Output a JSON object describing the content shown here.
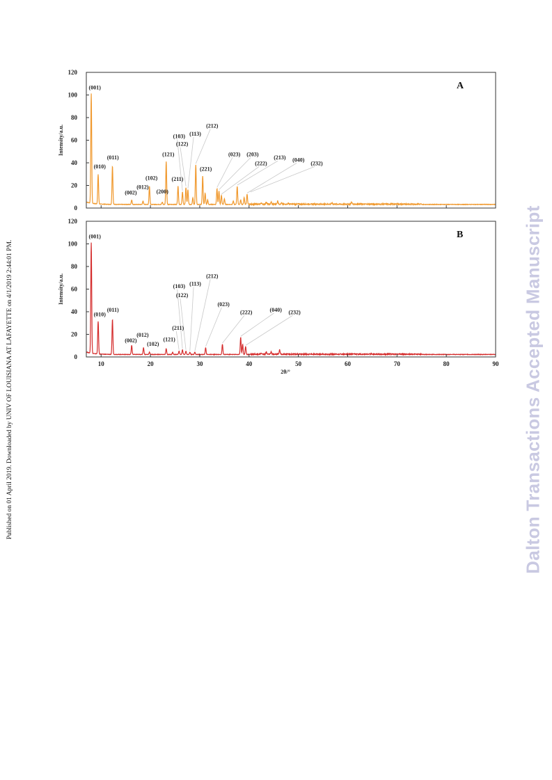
{
  "side_note": "Published on 01 April 2019. Downloaded by UNIV OF LOUISIANA AT LAFAYETTE on 4/1/2019 2:44:01 PM.",
  "watermark": "Dalton Transactions Accepted Manuscript",
  "colors": {
    "panel_a": "#f0982c",
    "panel_b": "#d42b2b",
    "leader": "#c8c8c8",
    "frame": "#333333"
  },
  "chart_data": [
    {
      "type": "line",
      "panel": "A",
      "xlabel": "",
      "ylabel": "Intensity/a.u.",
      "xlim": [
        7,
        90
      ],
      "ylim": [
        0,
        120
      ],
      "yticks": [
        0,
        20,
        40,
        60,
        80,
        100,
        120
      ],
      "xticks": [],
      "baseline": 3,
      "peaks": [
        [
          8.0,
          100
        ],
        [
          9.4,
          29
        ],
        [
          12.3,
          37
        ],
        [
          16.2,
          7
        ],
        [
          18.5,
          6
        ],
        [
          19.8,
          19
        ],
        [
          22.4,
          5
        ],
        [
          23.2,
          41
        ],
        [
          25.6,
          19
        ],
        [
          26.5,
          14
        ],
        [
          27.2,
          18
        ],
        [
          27.6,
          16
        ],
        [
          28.6,
          9
        ],
        [
          29.2,
          38
        ],
        [
          30.6,
          28
        ],
        [
          31.1,
          13
        ],
        [
          31.6,
          7
        ],
        [
          33.5,
          17
        ],
        [
          33.9,
          15
        ],
        [
          34.4,
          11
        ],
        [
          35.0,
          8
        ],
        [
          36.8,
          6
        ],
        [
          37.6,
          19
        ],
        [
          38.3,
          7
        ],
        [
          39.0,
          9
        ],
        [
          39.6,
          12
        ],
        [
          42.5,
          4
        ],
        [
          43.5,
          5
        ],
        [
          44.5,
          5
        ],
        [
          45.8,
          6
        ],
        [
          46.6,
          4
        ],
        [
          48.0,
          4
        ],
        [
          51.5,
          3
        ],
        [
          55.0,
          3
        ],
        [
          56.8,
          4
        ],
        [
          60.8,
          5
        ],
        [
          62.5,
          3
        ],
        [
          66.0,
          3
        ],
        [
          69.0,
          3
        ],
        [
          72.0,
          3
        ]
      ],
      "annotations": [
        {
          "label": "(001)",
          "x": 8.0,
          "y": 100,
          "lx": 7.5,
          "ly": 105
        },
        {
          "label": "(010)",
          "x": 9.4,
          "y": 29,
          "lx": 8.5,
          "ly": 35
        },
        {
          "label": "(011)",
          "x": 12.3,
          "y": 37,
          "lx": 11.2,
          "ly": 43
        },
        {
          "label": "(002)",
          "x": 16.2,
          "y": 7,
          "lx": 14.8,
          "ly": 12
        },
        {
          "label": "(012)",
          "x": 18.5,
          "y": 6,
          "lx": 17.2,
          "ly": 17
        },
        {
          "label": "(102)",
          "x": 19.8,
          "y": 19,
          "lx": 19.0,
          "ly": 25
        },
        {
          "label": "(200)",
          "x": 22.4,
          "y": 5,
          "lx": 21.2,
          "ly": 13
        },
        {
          "label": "(121)",
          "x": 23.2,
          "y": 41,
          "lx": 22.4,
          "ly": 46
        },
        {
          "label": "(211)",
          "x": 25.6,
          "y": 19,
          "lx": 24.3,
          "ly": 24
        },
        {
          "label": "(103)",
          "x": 26.5,
          "y": 14,
          "lx": 24.6,
          "ly": 62,
          "leader": true
        },
        {
          "label": "(122)",
          "x": 27.2,
          "y": 18,
          "lx": 25.2,
          "ly": 55,
          "leader": true
        },
        {
          "label": "(113)",
          "x": 27.6,
          "y": 16,
          "lx": 27.9,
          "ly": 64,
          "leader": true
        },
        {
          "label": "(212)",
          "x": 29.2,
          "y": 38,
          "lx": 31.3,
          "ly": 71,
          "leader": true
        },
        {
          "label": "(221)",
          "x": 30.6,
          "y": 28,
          "lx": 30.0,
          "ly": 33
        },
        {
          "label": "(023)",
          "x": 33.5,
          "y": 17,
          "lx": 35.8,
          "ly": 46,
          "leader": true
        },
        {
          "label": "(203)",
          "x": 33.9,
          "y": 15,
          "lx": 39.5,
          "ly": 46,
          "leader": true
        },
        {
          "label": "(222)",
          "x": 34.4,
          "y": 11,
          "lx": 41.2,
          "ly": 38,
          "leader": true
        },
        {
          "label": "(213)",
          "x": 37.6,
          "y": 19,
          "lx": 45.0,
          "ly": 43,
          "leader": true
        },
        {
          "label": "(040)",
          "x": 39.6,
          "y": 12,
          "lx": 48.8,
          "ly": 41,
          "leader": true
        },
        {
          "label": "(232)",
          "x": 40.3,
          "y": 13,
          "lx": 52.5,
          "ly": 38,
          "leader": true
        }
      ]
    },
    {
      "type": "line",
      "panel": "B",
      "xlabel": "2θ/°",
      "ylabel": "Intensity/a.u.",
      "xlim": [
        7,
        90
      ],
      "ylim": [
        0,
        120
      ],
      "yticks": [
        0,
        20,
        40,
        60,
        80,
        100,
        120
      ],
      "xticks": [
        10,
        20,
        30,
        40,
        50,
        60,
        70,
        80,
        90
      ],
      "baseline": 2,
      "peaks": [
        [
          8.0,
          100
        ],
        [
          9.4,
          31
        ],
        [
          12.3,
          33
        ],
        [
          16.2,
          10
        ],
        [
          18.6,
          8
        ],
        [
          19.8,
          4
        ],
        [
          23.2,
          7
        ],
        [
          24.5,
          4
        ],
        [
          25.8,
          5
        ],
        [
          26.5,
          6
        ],
        [
          27.2,
          5
        ],
        [
          28.0,
          4
        ],
        [
          29.0,
          4
        ],
        [
          31.2,
          8
        ],
        [
          34.6,
          11
        ],
        [
          38.3,
          17
        ],
        [
          38.7,
          11
        ],
        [
          39.3,
          9
        ],
        [
          42.5,
          3
        ],
        [
          43.5,
          4
        ],
        [
          44.5,
          4
        ],
        [
          46.2,
          6
        ],
        [
          48.0,
          2
        ],
        [
          52.5,
          2
        ],
        [
          60.0,
          2
        ],
        [
          69.2,
          2
        ]
      ],
      "annotations": [
        {
          "label": "(001)",
          "x": 8.0,
          "y": 100,
          "lx": 7.5,
          "ly": 105
        },
        {
          "label": "(010)",
          "x": 9.4,
          "y": 31,
          "lx": 8.5,
          "ly": 36
        },
        {
          "label": "(011)",
          "x": 12.3,
          "y": 33,
          "lx": 11.2,
          "ly": 40
        },
        {
          "label": "(002)",
          "x": 16.2,
          "y": 10,
          "lx": 14.8,
          "ly": 13
        },
        {
          "label": "(012)",
          "x": 18.6,
          "y": 8,
          "lx": 17.2,
          "ly": 18
        },
        {
          "label": "(102)",
          "x": 19.8,
          "y": 4,
          "lx": 19.3,
          "ly": 10
        },
        {
          "label": "(121)",
          "x": 23.2,
          "y": 7,
          "lx": 22.6,
          "ly": 14
        },
        {
          "label": "(211)",
          "x": 25.8,
          "y": 5,
          "lx": 24.4,
          "ly": 24,
          "leader": true
        },
        {
          "label": "(103)",
          "x": 26.5,
          "y": 6,
          "lx": 24.6,
          "ly": 61,
          "leader": true
        },
        {
          "label": "(122)",
          "x": 27.2,
          "y": 5,
          "lx": 25.2,
          "ly": 53,
          "leader": true
        },
        {
          "label": "(113)",
          "x": 28.0,
          "y": 4,
          "lx": 27.9,
          "ly": 63,
          "leader": true
        },
        {
          "label": "(212)",
          "x": 29.0,
          "y": 4,
          "lx": 31.3,
          "ly": 70,
          "leader": true
        },
        {
          "label": "(023)",
          "x": 31.2,
          "y": 8,
          "lx": 33.6,
          "ly": 45,
          "leader": true
        },
        {
          "label": "(222)",
          "x": 34.6,
          "y": 11,
          "lx": 38.2,
          "ly": 38,
          "leader": true
        },
        {
          "label": "(040)",
          "x": 38.3,
          "y": 17,
          "lx": 44.2,
          "ly": 40,
          "leader": true
        },
        {
          "label": "(232)",
          "x": 39.3,
          "y": 9,
          "lx": 48.0,
          "ly": 38,
          "leader": true
        }
      ]
    }
  ]
}
